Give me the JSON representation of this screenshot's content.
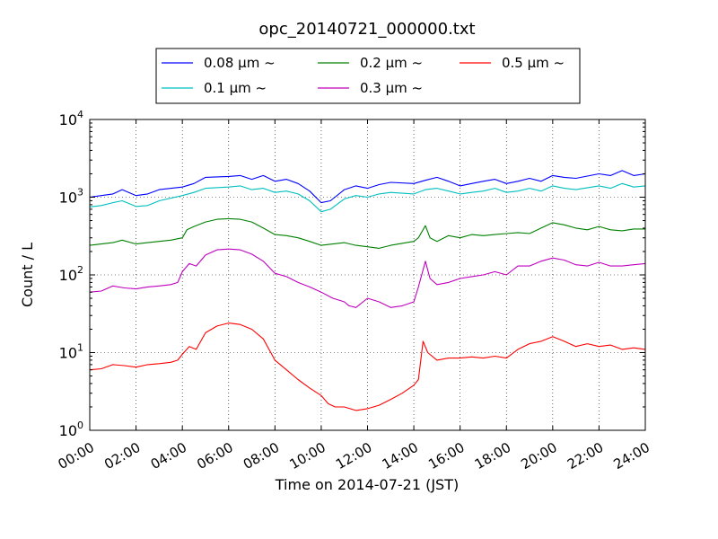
{
  "chart_data": {
    "type": "line",
    "title": "opc_20140721_000000.txt",
    "xlabel": "Time on 2014-07-21 (JST)",
    "ylabel": "Count / L",
    "x_ticks": [
      "00:00",
      "02:00",
      "04:00",
      "06:00",
      "08:00",
      "10:00",
      "12:00",
      "14:00",
      "16:00",
      "18:00",
      "20:00",
      "22:00",
      "24:00"
    ],
    "y_ticks": [
      {
        "base": "10",
        "exp": "0"
      },
      {
        "base": "10",
        "exp": "1"
      },
      {
        "base": "10",
        "exp": "2"
      },
      {
        "base": "10",
        "exp": "3"
      },
      {
        "base": "10",
        "exp": "4"
      }
    ],
    "y_scale": "log",
    "ylim": [
      1,
      10000
    ],
    "xlim_hours": [
      0,
      24
    ],
    "grid": true,
    "legend_position": "top",
    "series": [
      {
        "name": "0.08 μm ~",
        "color": "#0000ff",
        "points": [
          [
            0,
            1000
          ],
          [
            0.5,
            1050
          ],
          [
            1,
            1100
          ],
          [
            1.4,
            1250
          ],
          [
            2,
            1050
          ],
          [
            2.5,
            1100
          ],
          [
            3,
            1250
          ],
          [
            4,
            1350
          ],
          [
            4.5,
            1500
          ],
          [
            5,
            1800
          ],
          [
            6,
            1850
          ],
          [
            6.5,
            1900
          ],
          [
            7,
            1700
          ],
          [
            7.5,
            1900
          ],
          [
            8,
            1600
          ],
          [
            8.5,
            1700
          ],
          [
            9,
            1500
          ],
          [
            9.5,
            1200
          ],
          [
            10,
            850
          ],
          [
            10.4,
            900
          ],
          [
            11,
            1250
          ],
          [
            11.5,
            1400
          ],
          [
            12,
            1300
          ],
          [
            12.5,
            1450
          ],
          [
            13,
            1550
          ],
          [
            14,
            1500
          ],
          [
            14.5,
            1650
          ],
          [
            15,
            1800
          ],
          [
            15.5,
            1600
          ],
          [
            16,
            1400
          ],
          [
            16.5,
            1500
          ],
          [
            17,
            1600
          ],
          [
            17.5,
            1700
          ],
          [
            18,
            1500
          ],
          [
            18.5,
            1600
          ],
          [
            19,
            1750
          ],
          [
            19.5,
            1600
          ],
          [
            20,
            1900
          ],
          [
            20.5,
            1800
          ],
          [
            21,
            1750
          ],
          [
            22,
            2000
          ],
          [
            22.5,
            1900
          ],
          [
            23,
            2200
          ],
          [
            23.5,
            1900
          ],
          [
            24,
            2000
          ]
        ]
      },
      {
        "name": "0.1 μm ~",
        "color": "#00bfbf",
        "points": [
          [
            0,
            750
          ],
          [
            0.5,
            780
          ],
          [
            1,
            850
          ],
          [
            1.4,
            900
          ],
          [
            2,
            760
          ],
          [
            2.5,
            780
          ],
          [
            3,
            900
          ],
          [
            4,
            1050
          ],
          [
            4.5,
            1150
          ],
          [
            5,
            1300
          ],
          [
            6,
            1350
          ],
          [
            6.5,
            1400
          ],
          [
            7,
            1250
          ],
          [
            7.5,
            1300
          ],
          [
            8,
            1150
          ],
          [
            8.5,
            1200
          ],
          [
            9,
            1100
          ],
          [
            9.5,
            900
          ],
          [
            10,
            650
          ],
          [
            10.4,
            700
          ],
          [
            11,
            950
          ],
          [
            11.5,
            1050
          ],
          [
            12,
            1000
          ],
          [
            12.5,
            1100
          ],
          [
            13,
            1150
          ],
          [
            14,
            1100
          ],
          [
            14.5,
            1250
          ],
          [
            15,
            1300
          ],
          [
            15.5,
            1200
          ],
          [
            16,
            1100
          ],
          [
            16.5,
            1150
          ],
          [
            17,
            1200
          ],
          [
            17.5,
            1300
          ],
          [
            18,
            1150
          ],
          [
            18.5,
            1200
          ],
          [
            19,
            1300
          ],
          [
            19.5,
            1200
          ],
          [
            20,
            1400
          ],
          [
            20.5,
            1300
          ],
          [
            21,
            1250
          ],
          [
            22,
            1400
          ],
          [
            22.5,
            1300
          ],
          [
            23,
            1500
          ],
          [
            23.5,
            1350
          ],
          [
            24,
            1400
          ]
        ]
      },
      {
        "name": "0.2 μm ~",
        "color": "#008000",
        "points": [
          [
            0,
            240
          ],
          [
            0.5,
            250
          ],
          [
            1,
            260
          ],
          [
            1.4,
            280
          ],
          [
            2,
            250
          ],
          [
            2.5,
            260
          ],
          [
            3,
            270
          ],
          [
            3.5,
            280
          ],
          [
            4,
            300
          ],
          [
            4.2,
            380
          ],
          [
            4.5,
            420
          ],
          [
            5,
            480
          ],
          [
            5.5,
            520
          ],
          [
            6,
            530
          ],
          [
            6.5,
            520
          ],
          [
            7,
            480
          ],
          [
            7.5,
            400
          ],
          [
            8,
            330
          ],
          [
            8.5,
            320
          ],
          [
            9,
            300
          ],
          [
            9.5,
            270
          ],
          [
            10,
            240
          ],
          [
            10.5,
            250
          ],
          [
            11,
            260
          ],
          [
            11.5,
            240
          ],
          [
            12,
            230
          ],
          [
            12.5,
            220
          ],
          [
            13,
            240
          ],
          [
            14,
            270
          ],
          [
            14.2,
            300
          ],
          [
            14.5,
            430
          ],
          [
            14.7,
            300
          ],
          [
            15,
            270
          ],
          [
            15.5,
            320
          ],
          [
            16,
            300
          ],
          [
            16.5,
            330
          ],
          [
            17,
            320
          ],
          [
            17.5,
            330
          ],
          [
            18,
            340
          ],
          [
            18.5,
            350
          ],
          [
            19,
            340
          ],
          [
            19.5,
            400
          ],
          [
            20,
            470
          ],
          [
            20.5,
            440
          ],
          [
            21,
            400
          ],
          [
            21.5,
            380
          ],
          [
            22,
            420
          ],
          [
            22.5,
            380
          ],
          [
            23,
            370
          ],
          [
            23.5,
            390
          ],
          [
            24,
            390
          ]
        ]
      },
      {
        "name": "0.3 μm ~",
        "color": "#bf00bf",
        "points": [
          [
            0,
            60
          ],
          [
            0.5,
            62
          ],
          [
            1,
            72
          ],
          [
            1.5,
            68
          ],
          [
            2,
            66
          ],
          [
            2.5,
            70
          ],
          [
            3,
            72
          ],
          [
            3.5,
            75
          ],
          [
            3.8,
            80
          ],
          [
            4,
            110
          ],
          [
            4.3,
            140
          ],
          [
            4.6,
            130
          ],
          [
            5,
            180
          ],
          [
            5.5,
            210
          ],
          [
            6,
            215
          ],
          [
            6.5,
            210
          ],
          [
            7,
            185
          ],
          [
            7.5,
            150
          ],
          [
            8,
            105
          ],
          [
            8.5,
            95
          ],
          [
            9,
            80
          ],
          [
            9.5,
            70
          ],
          [
            10,
            60
          ],
          [
            10.5,
            50
          ],
          [
            11,
            45
          ],
          [
            11.2,
            40
          ],
          [
            11.5,
            38
          ],
          [
            12,
            50
          ],
          [
            12.5,
            45
          ],
          [
            13,
            38
          ],
          [
            13.5,
            40
          ],
          [
            14,
            45
          ],
          [
            14.2,
            70
          ],
          [
            14.5,
            150
          ],
          [
            14.7,
            90
          ],
          [
            15,
            75
          ],
          [
            15.5,
            80
          ],
          [
            16,
            90
          ],
          [
            16.5,
            95
          ],
          [
            17,
            100
          ],
          [
            17.5,
            110
          ],
          [
            18,
            100
          ],
          [
            18.5,
            130
          ],
          [
            19,
            130
          ],
          [
            19.5,
            150
          ],
          [
            20,
            165
          ],
          [
            20.5,
            155
          ],
          [
            21,
            135
          ],
          [
            21.5,
            130
          ],
          [
            22,
            145
          ],
          [
            22.5,
            130
          ],
          [
            23,
            130
          ],
          [
            23.5,
            135
          ],
          [
            24,
            140
          ]
        ]
      },
      {
        "name": "0.5 μm ~",
        "color": "#ff0000",
        "points": [
          [
            0,
            6
          ],
          [
            0.5,
            6.2
          ],
          [
            1,
            7
          ],
          [
            1.5,
            6.8
          ],
          [
            2,
            6.5
          ],
          [
            2.5,
            7
          ],
          [
            3,
            7.2
          ],
          [
            3.5,
            7.5
          ],
          [
            3.8,
            8
          ],
          [
            4,
            9.5
          ],
          [
            4.3,
            12
          ],
          [
            4.6,
            11
          ],
          [
            5,
            18
          ],
          [
            5.5,
            22
          ],
          [
            6,
            24
          ],
          [
            6.5,
            23
          ],
          [
            7,
            20
          ],
          [
            7.5,
            15
          ],
          [
            8,
            8
          ],
          [
            8.5,
            6
          ],
          [
            9,
            4.5
          ],
          [
            9.5,
            3.5
          ],
          [
            10,
            2.8
          ],
          [
            10.3,
            2.2
          ],
          [
            10.6,
            2.0
          ],
          [
            11,
            2.0
          ],
          [
            11.5,
            1.8
          ],
          [
            12,
            1.9
          ],
          [
            12.5,
            2.1
          ],
          [
            13,
            2.5
          ],
          [
            13.5,
            3.0
          ],
          [
            14,
            3.8
          ],
          [
            14.2,
            4.5
          ],
          [
            14.4,
            14
          ],
          [
            14.6,
            10
          ],
          [
            15,
            8
          ],
          [
            15.5,
            8.5
          ],
          [
            16,
            8.5
          ],
          [
            16.5,
            8.8
          ],
          [
            17,
            8.5
          ],
          [
            17.5,
            9
          ],
          [
            18,
            8.5
          ],
          [
            18.5,
            11
          ],
          [
            19,
            13
          ],
          [
            19.5,
            14
          ],
          [
            20,
            16
          ],
          [
            20.5,
            14
          ],
          [
            21,
            12
          ],
          [
            21.5,
            13
          ],
          [
            22,
            12
          ],
          [
            22.5,
            12.5
          ],
          [
            23,
            11
          ],
          [
            23.5,
            11.5
          ],
          [
            24,
            11
          ]
        ]
      }
    ]
  }
}
